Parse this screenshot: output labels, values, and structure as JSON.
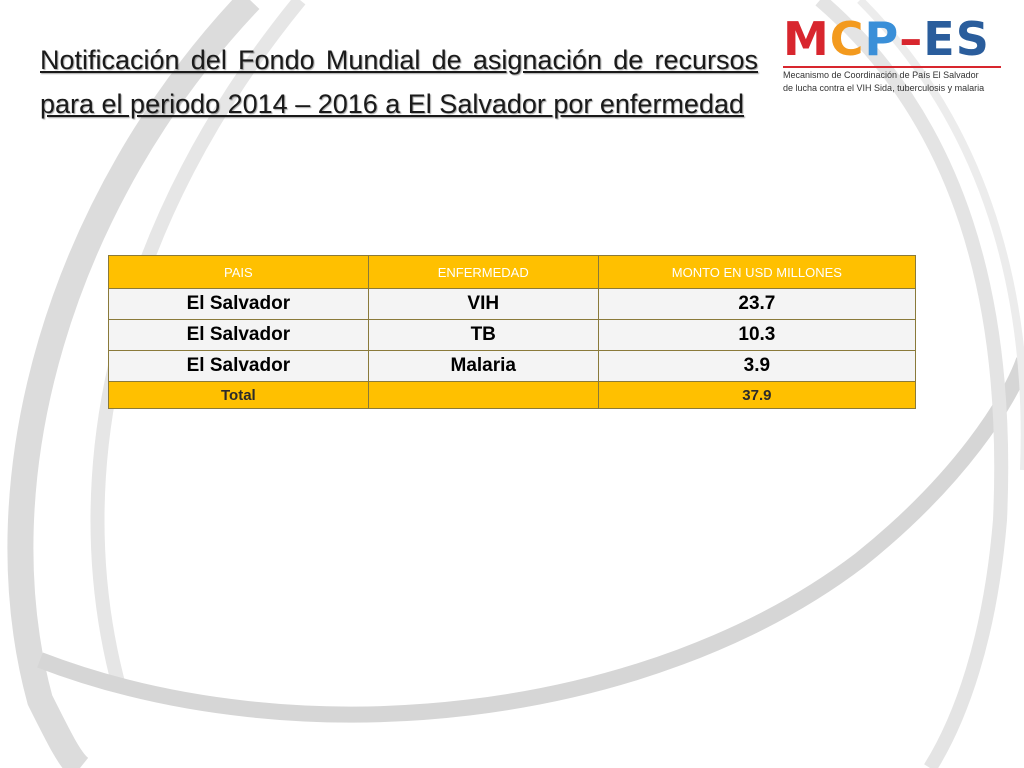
{
  "slide": {
    "title": "Notificación del Fondo Mundial de asignación de recursos para el periodo 2014 – 2016 a El Salvador por enfermedad"
  },
  "logo": {
    "letters": {
      "m": "M",
      "c": "C",
      "p": "P",
      "dash": "–",
      "es": "ES"
    },
    "subtitle_line1": "Mecanismo de Coordinación de País El Salvador",
    "subtitle_line2": "de lucha contra el VIH Sida, tuberculosis y malaria"
  },
  "table": {
    "headers": [
      "PAIS",
      "ENFERMEDAD",
      "MONTO EN USD MILLONES"
    ],
    "rows": [
      [
        "El Salvador",
        "VIH",
        "23.7"
      ],
      [
        "El Salvador",
        "TB",
        "10.3"
      ],
      [
        "El Salvador",
        "Malaria",
        "3.9"
      ]
    ],
    "footer": [
      "Total",
      "",
      "37.9"
    ]
  },
  "colors": {
    "header_bg": "#ffc000",
    "header_text": "#ffffff",
    "row_bg": "#f4f4f4",
    "swoosh": "#d9d9d9"
  }
}
